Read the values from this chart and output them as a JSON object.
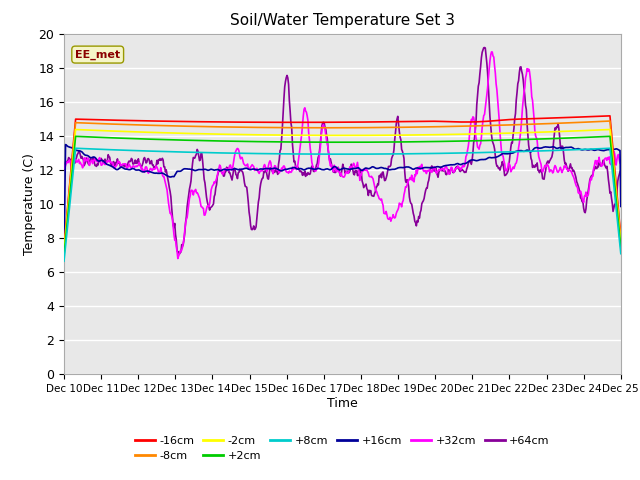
{
  "title": "Soil/Water Temperature Set 3",
  "xlabel": "Time",
  "ylabel": "Temperature (C)",
  "ylim": [
    0,
    20
  ],
  "xlim": [
    0,
    15
  ],
  "x_tick_labels": [
    "Dec 10",
    "Dec 11",
    "Dec 12",
    "Dec 13",
    "Dec 14",
    "Dec 15",
    "Dec 16",
    "Dec 17",
    "Dec 18",
    "Dec 19",
    "Dec 20",
    "Dec 21",
    "Dec 22",
    "Dec 23",
    "Dec 24",
    "Dec 25"
  ],
  "fig_bg": "#ffffff",
  "plot_bg": "#e8e8e8",
  "legend_label": "EE_met",
  "series_order": [
    "-16cm",
    "-8cm",
    "-2cm",
    "+2cm",
    "+8cm",
    "+16cm",
    "+32cm",
    "+64cm"
  ],
  "series": {
    "-16cm": {
      "color": "#ff0000",
      "lw": 1.2
    },
    "-8cm": {
      "color": "#ff8800",
      "lw": 1.2
    },
    "-2cm": {
      "color": "#ffff00",
      "lw": 1.2
    },
    "+2cm": {
      "color": "#00cc00",
      "lw": 1.2
    },
    "+8cm": {
      "color": "#00cccc",
      "lw": 1.2
    },
    "+16cm": {
      "color": "#000099",
      "lw": 1.2
    },
    "+32cm": {
      "color": "#ff00ff",
      "lw": 1.2
    },
    "+64cm": {
      "color": "#880099",
      "lw": 1.2
    }
  }
}
